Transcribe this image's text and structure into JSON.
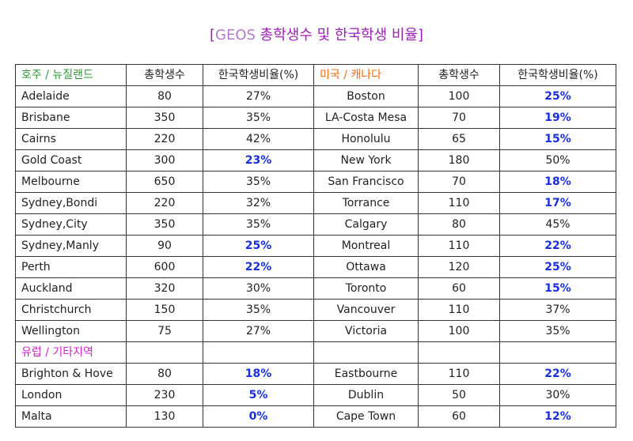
{
  "title": {
    "open_bracket": "[",
    "prefix": "GEOS",
    "text": "총학생수 및 한국학생 비율",
    "close_bracket": "]"
  },
  "colors": {
    "title": "#9b1fb5",
    "region_au_nz": "#2e9a3a",
    "region_us_ca": "#f06a12",
    "region_eu_other": "#d020c8",
    "highlight": "#1a2ee0"
  },
  "header": {
    "region_left": "호주 / 뉴질랜드",
    "students_left": "총학생수",
    "ratio_left": "한국학생비율(%)",
    "region_right": "미국 / 캐나다",
    "students_right": "총학생수",
    "ratio_right": "한국학생비율(%)"
  },
  "rows": [
    {
      "l_city": "Adelaide",
      "l_students": "80",
      "l_ratio": "27%",
      "r_city": "Boston",
      "r_students": "100",
      "r_ratio": "25%"
    },
    {
      "l_city": "Brisbane",
      "l_students": "350",
      "l_ratio": "35%",
      "r_city": "LA-Costa Mesa",
      "r_students": "70",
      "r_ratio": "19%"
    },
    {
      "l_city": "Cairns",
      "l_students": "220",
      "l_ratio": "42%",
      "r_city": "Honolulu",
      "r_students": "65",
      "r_ratio": "15%"
    },
    {
      "l_city": "Gold Coast",
      "l_students": "300",
      "l_ratio": "23%",
      "r_city": "New York",
      "r_students": "180",
      "r_ratio": "50%"
    },
    {
      "l_city": "Melbourne",
      "l_students": "650",
      "l_ratio": "35%",
      "r_city": "San Francisco",
      "r_students": "70",
      "r_ratio": "18%"
    },
    {
      "l_city": "Sydney,Bondi",
      "l_students": "220",
      "l_ratio": "32%",
      "r_city": "Torrance",
      "r_students": "110",
      "r_ratio": "17%"
    },
    {
      "l_city": "Sydney,City",
      "l_students": "350",
      "l_ratio": "35%",
      "r_city": "Calgary",
      "r_students": "80",
      "r_ratio": "45%"
    },
    {
      "l_city": "Sydney,Manly",
      "l_students": "90",
      "l_ratio": "25%",
      "r_city": "Montreal",
      "r_students": "110",
      "r_ratio": "22%"
    },
    {
      "l_city": "Perth",
      "l_students": "600",
      "l_ratio": "22%",
      "r_city": "Ottawa",
      "r_students": "120",
      "r_ratio": "25%"
    },
    {
      "l_city": "Auckland",
      "l_students": "320",
      "l_ratio": "30%",
      "r_city": "Toronto",
      "r_students": "60",
      "r_ratio": "15%"
    },
    {
      "l_city": "Christchurch",
      "l_students": "150",
      "l_ratio": "35%",
      "r_city": "Vancouver",
      "r_students": "110",
      "r_ratio": "37%"
    },
    {
      "l_city": "Wellington",
      "l_students": "75",
      "l_ratio": "27%",
      "r_city": "Victoria",
      "r_students": "100",
      "r_ratio": "35%"
    }
  ],
  "region_eu_label": "유럽 / 기타지역",
  "rows2": [
    {
      "l_city": "Brighton & Hove",
      "l_students": "80",
      "l_ratio": "18%",
      "r_city": "Eastbourne",
      "r_students": "110",
      "r_ratio": "22%"
    },
    {
      "l_city": "London",
      "l_students": "230",
      "l_ratio": "5%",
      "r_city": "Dublin",
      "r_students": "50",
      "r_ratio": "30%"
    },
    {
      "l_city": "Malta",
      "l_students": "130",
      "l_ratio": "0%",
      "r_city": "Cape Town",
      "r_students": "60",
      "r_ratio": "12%"
    }
  ]
}
